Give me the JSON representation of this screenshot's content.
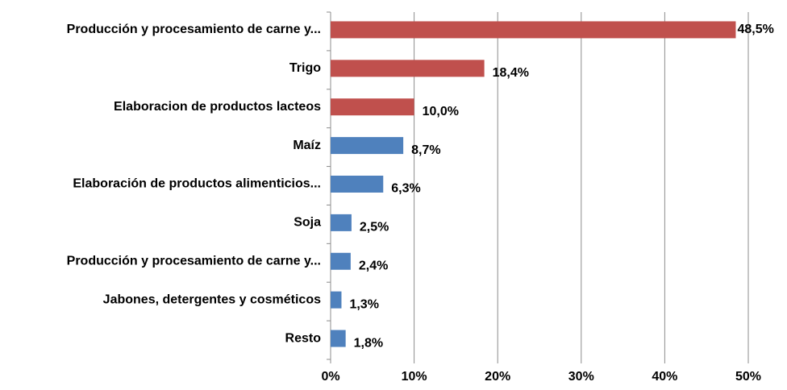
{
  "chart_data": {
    "type": "hbar",
    "categories": [
      "Producción y procesamiento de carne y...",
      "Trigo",
      "Elaboracion de productos lacteos",
      "Maíz",
      "Elaboración de productos alimenticios...",
      "Soja",
      "Producción y procesamiento de carne y...",
      "Jabones, detergentes y cosméticos",
      "Resto"
    ],
    "values": [
      48.5,
      18.4,
      10.0,
      8.7,
      6.3,
      2.5,
      2.4,
      1.3,
      1.8
    ],
    "value_labels": [
      "48,5%",
      "18,4%",
      "10,0%",
      "8,7%",
      "6,3%",
      "2,5%",
      "2,4%",
      "1,3%",
      "1,8%"
    ],
    "colors": [
      "#c0504d",
      "#c0504d",
      "#c0504d",
      "#4f81bd",
      "#4f81bd",
      "#4f81bd",
      "#4f81bd",
      "#4f81bd",
      "#4f81bd"
    ],
    "xlim": [
      0,
      50
    ],
    "xticks": [
      {
        "value": 0,
        "label": "0%"
      },
      {
        "value": 10,
        "label": "10%"
      },
      {
        "value": 20,
        "label": "20%"
      },
      {
        "value": 30,
        "label": "30%"
      },
      {
        "value": 40,
        "label": "40%"
      },
      {
        "value": 50,
        "label": "50%"
      }
    ],
    "grid": true
  }
}
